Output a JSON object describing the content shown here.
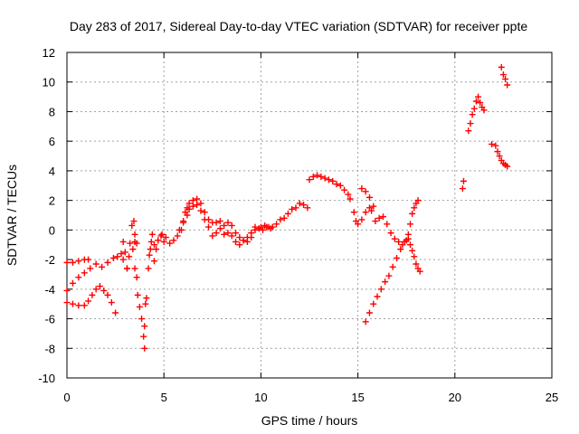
{
  "chart_data": {
    "type": "scatter",
    "title": "Day 283 of 2017, Sidereal Day-to-day VTEC variation (SDTVAR) for receiver ppte",
    "xlabel": "GPS time / hours",
    "ylabel": "SDTVAR / TECUs",
    "xlim": [
      0,
      25
    ],
    "ylim": [
      -10,
      12
    ],
    "xticks": [
      0,
      5,
      10,
      15,
      20,
      25
    ],
    "yticks": [
      -10,
      -8,
      -6,
      -4,
      -2,
      0,
      2,
      4,
      6,
      8,
      10,
      12
    ],
    "grid": true,
    "marker": "plus",
    "color": "#ff0000",
    "series": [
      {
        "points": [
          [
            0.0,
            -2.2
          ],
          [
            0.3,
            -2.2
          ],
          [
            0.6,
            -2.1
          ],
          [
            0.9,
            -2.0
          ],
          [
            1.1,
            -2.0
          ]
        ]
      },
      {
        "points": [
          [
            0.0,
            -4.1
          ],
          [
            0.3,
            -3.6
          ],
          [
            0.6,
            -3.2
          ],
          [
            0.9,
            -2.9
          ],
          [
            1.2,
            -2.6
          ],
          [
            1.5,
            -2.3
          ],
          [
            1.8,
            -2.5
          ],
          [
            2.1,
            -2.2
          ],
          [
            2.4,
            -1.9
          ],
          [
            2.6,
            -1.8
          ],
          [
            2.9,
            -2.0
          ],
          [
            3.1,
            -2.6
          ],
          [
            3.2,
            -1.8
          ],
          [
            3.4,
            -1.3
          ],
          [
            3.5,
            -0.8
          ],
          [
            3.6,
            -0.9
          ]
        ]
      },
      {
        "points": [
          [
            0.0,
            -4.9
          ],
          [
            0.3,
            -5.0
          ],
          [
            0.6,
            -5.1
          ],
          [
            0.9,
            -5.1
          ],
          [
            1.1,
            -4.8
          ],
          [
            1.3,
            -4.4
          ],
          [
            1.5,
            -4.0
          ],
          [
            1.7,
            -3.8
          ],
          [
            1.9,
            -4.1
          ],
          [
            2.1,
            -4.4
          ],
          [
            2.3,
            -4.9
          ],
          [
            2.5,
            -5.6
          ]
        ]
      },
      {
        "points": [
          [
            2.8,
            -1.6
          ],
          [
            2.9,
            -0.8
          ],
          [
            3.0,
            -1.5
          ],
          [
            3.1,
            -2.6
          ],
          [
            3.25,
            -0.9
          ],
          [
            3.35,
            0.3
          ],
          [
            3.45,
            0.6
          ],
          [
            3.5,
            -0.3
          ]
        ]
      },
      {
        "points": [
          [
            3.5,
            -2.6
          ],
          [
            3.6,
            -3.2
          ],
          [
            3.65,
            -4.4
          ],
          [
            3.75,
            -5.2
          ],
          [
            3.85,
            -6.0
          ],
          [
            3.95,
            -7.2
          ],
          [
            4.0,
            -8.0
          ],
          [
            4.0,
            -6.5
          ],
          [
            4.05,
            -5.0
          ],
          [
            4.1,
            -4.6
          ],
          [
            4.2,
            -2.6
          ],
          [
            4.25,
            -1.7
          ],
          [
            4.35,
            -0.8
          ],
          [
            4.4,
            -0.3
          ],
          [
            4.5,
            -2.1
          ],
          [
            4.6,
            -1.3
          ],
          [
            4.7,
            -0.7
          ],
          [
            4.85,
            -0.4
          ],
          [
            5.0,
            -0.8
          ]
        ]
      },
      {
        "points": [
          [
            4.3,
            -1.3
          ],
          [
            4.5,
            -1.0
          ],
          [
            4.7,
            -0.7
          ],
          [
            4.9,
            -0.3
          ],
          [
            5.1,
            -0.5
          ],
          [
            5.3,
            -0.9
          ],
          [
            5.5,
            -0.7
          ],
          [
            5.7,
            -0.4
          ],
          [
            5.9,
            0.0
          ],
          [
            6.0,
            0.5
          ],
          [
            6.1,
            1.2
          ],
          [
            6.2,
            1.5
          ],
          [
            6.3,
            1.8
          ],
          [
            6.5,
            2.0
          ],
          [
            6.7,
            2.1
          ],
          [
            6.9,
            1.8
          ],
          [
            7.1,
            1.2
          ],
          [
            7.3,
            0.7
          ],
          [
            7.5,
            0.5
          ],
          [
            7.7,
            0.5
          ],
          [
            7.9,
            0.6
          ],
          [
            8.1,
            0.3
          ],
          [
            8.3,
            0.5
          ],
          [
            8.5,
            0.3
          ],
          [
            8.7,
            -0.2
          ],
          [
            8.9,
            -0.5
          ],
          [
            9.1,
            -0.7
          ],
          [
            9.3,
            -0.8
          ],
          [
            9.5,
            -0.5
          ],
          [
            9.7,
            0.0
          ],
          [
            10.0,
            0.2
          ],
          [
            10.2,
            0.3
          ],
          [
            10.4,
            0.2
          ],
          [
            10.6,
            0.2
          ],
          [
            10.8,
            0.4
          ],
          [
            11.0,
            0.7
          ],
          [
            11.2,
            0.8
          ],
          [
            11.4,
            1.1
          ],
          [
            11.6,
            1.4
          ],
          [
            11.8,
            1.5
          ],
          [
            12.0,
            1.8
          ],
          [
            12.2,
            1.7
          ],
          [
            12.4,
            1.5
          ]
        ]
      },
      {
        "points": [
          [
            5.8,
            0.0
          ],
          [
            6.0,
            0.6
          ],
          [
            6.2,
            1.0
          ],
          [
            6.3,
            1.4
          ],
          [
            6.5,
            1.6
          ],
          [
            6.7,
            1.7
          ],
          [
            6.9,
            1.3
          ],
          [
            7.1,
            0.7
          ],
          [
            7.3,
            0.2
          ],
          [
            7.5,
            -0.4
          ],
          [
            7.7,
            -0.2
          ],
          [
            7.9,
            0.1
          ],
          [
            8.1,
            -0.3
          ],
          [
            8.3,
            -0.2
          ],
          [
            8.5,
            -0.4
          ],
          [
            8.7,
            -0.8
          ],
          [
            8.9,
            -1.0
          ],
          [
            9.1,
            -0.7
          ],
          [
            9.3,
            -0.5
          ],
          [
            9.5,
            -0.2
          ],
          [
            9.7,
            0.2
          ],
          [
            9.9,
            0.1
          ],
          [
            10.1,
            0.0
          ],
          [
            10.3,
            0.2
          ],
          [
            10.5,
            0.1
          ]
        ]
      },
      {
        "points": [
          [
            12.5,
            3.4
          ],
          [
            12.7,
            3.6
          ],
          [
            12.9,
            3.7
          ],
          [
            13.1,
            3.6
          ],
          [
            13.3,
            3.5
          ],
          [
            13.5,
            3.4
          ],
          [
            13.7,
            3.3
          ],
          [
            13.9,
            3.1
          ],
          [
            14.1,
            3.0
          ],
          [
            14.3,
            2.7
          ],
          [
            14.5,
            2.4
          ],
          [
            14.6,
            2.1
          ]
        ]
      },
      {
        "points": [
          [
            14.8,
            1.2
          ],
          [
            14.9,
            0.6
          ],
          [
            15.0,
            0.4
          ],
          [
            15.2,
            0.7
          ],
          [
            15.4,
            1.2
          ],
          [
            15.6,
            1.5
          ],
          [
            15.7,
            1.3
          ]
        ]
      },
      {
        "points": [
          [
            15.2,
            2.8
          ],
          [
            15.4,
            2.6
          ],
          [
            15.6,
            2.2
          ],
          [
            15.8,
            1.6
          ],
          [
            15.9,
            0.6
          ],
          [
            16.1,
            0.8
          ],
          [
            16.3,
            0.9
          ],
          [
            16.5,
            0.4
          ],
          [
            16.7,
            -0.2
          ],
          [
            16.9,
            -0.6
          ],
          [
            17.1,
            -0.8
          ],
          [
            17.3,
            -1.0
          ],
          [
            17.5,
            -0.7
          ],
          [
            17.6,
            -0.3
          ],
          [
            17.7,
            0.4
          ],
          [
            17.8,
            1.1
          ],
          [
            17.9,
            1.5
          ],
          [
            18.0,
            1.8
          ],
          [
            18.1,
            2.0
          ]
        ]
      },
      {
        "points": [
          [
            15.4,
            -6.2
          ],
          [
            15.6,
            -5.6
          ],
          [
            15.8,
            -5.0
          ],
          [
            16.0,
            -4.5
          ],
          [
            16.2,
            -4.0
          ],
          [
            16.4,
            -3.5
          ],
          [
            16.6,
            -3.1
          ],
          [
            16.8,
            -2.5
          ],
          [
            17.0,
            -1.9
          ],
          [
            17.2,
            -1.3
          ],
          [
            17.4,
            -0.8
          ],
          [
            17.6,
            -0.6
          ],
          [
            17.7,
            -1.0
          ],
          [
            17.8,
            -1.4
          ],
          [
            17.9,
            -1.8
          ],
          [
            18.0,
            -2.3
          ],
          [
            18.1,
            -2.6
          ],
          [
            18.2,
            -2.8
          ]
        ]
      },
      {
        "points": [
          [
            20.4,
            2.8
          ],
          [
            20.45,
            3.3
          ]
        ]
      },
      {
        "points": [
          [
            20.7,
            6.7
          ],
          [
            20.8,
            7.2
          ],
          [
            20.9,
            7.8
          ],
          [
            21.0,
            8.2
          ],
          [
            21.1,
            8.7
          ],
          [
            21.2,
            9.0
          ],
          [
            21.3,
            8.6
          ],
          [
            21.4,
            8.3
          ],
          [
            21.5,
            8.1
          ]
        ]
      },
      {
        "points": [
          [
            21.9,
            5.8
          ],
          [
            22.1,
            5.7
          ],
          [
            22.2,
            5.3
          ],
          [
            22.3,
            5.0
          ],
          [
            22.4,
            4.7
          ],
          [
            22.5,
            4.5
          ],
          [
            22.6,
            4.4
          ],
          [
            22.7,
            4.3
          ]
        ]
      },
      {
        "points": [
          [
            22.4,
            11.0
          ],
          [
            22.5,
            10.5
          ],
          [
            22.6,
            10.2
          ],
          [
            22.7,
            9.8
          ]
        ]
      }
    ]
  }
}
